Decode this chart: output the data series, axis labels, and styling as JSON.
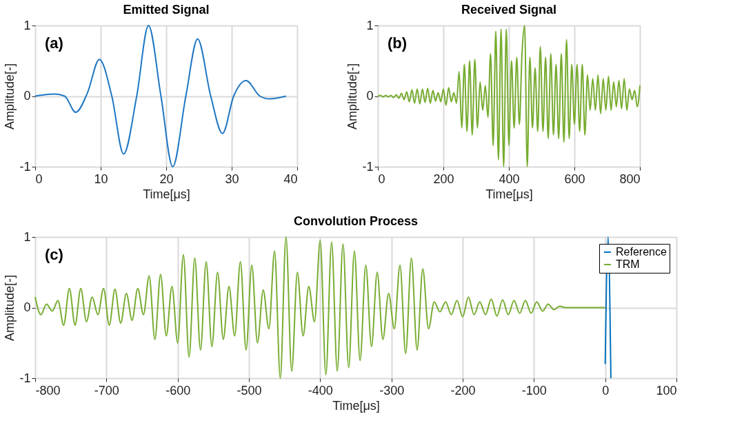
{
  "chart_data": [
    {
      "type": "line",
      "title": "Emitted Signal",
      "xlabel": "Time[μs]",
      "ylabel": "Amplitude[-]",
      "annotations": [
        "(a)"
      ],
      "xlim": [
        0,
        40
      ],
      "xticks": [
        0,
        10,
        20,
        30,
        40
      ],
      "ylim": [
        -1,
        1
      ],
      "yticks": [
        -1,
        0,
        1
      ],
      "grid": true,
      "legend": false,
      "series": [
        {
          "color": "#1f77c4",
          "x": [
            0,
            1.5,
            3,
            4.5,
            6.2,
            8,
            9.8,
            11.7,
            13.5,
            15.5,
            17.3,
            19.2,
            21,
            23,
            24.8,
            26.8,
            28.6,
            30.3,
            32.2,
            34.3,
            35.8,
            38.3
          ],
          "values": [
            0,
            0.02,
            0.03,
            0,
            -0.23,
            0.05,
            0.52,
            0,
            -0.82,
            0,
            1.0,
            0,
            -1.0,
            0,
            0.81,
            0,
            -0.53,
            0,
            0.22,
            0,
            -0.04,
            0
          ]
        }
      ]
    },
    {
      "type": "line",
      "title": "Received Signal",
      "xlabel": "Time[μs]",
      "ylabel": "Amplitude[-]",
      "annotations": [
        "(b)"
      ],
      "xlim": [
        0,
        800
      ],
      "xticks": [
        0,
        200,
        400,
        600,
        800
      ],
      "ylim": [
        -1,
        1
      ],
      "yticks": [
        -1,
        0,
        1
      ],
      "grid": true,
      "legend": false,
      "series": [
        {
          "color": "#77ac30",
          "x": [
            0,
            8,
            16,
            24,
            32,
            40,
            48,
            56,
            64,
            72,
            80,
            88,
            96,
            104,
            112,
            120,
            128,
            136,
            144,
            152,
            160,
            168,
            176,
            184,
            192,
            200,
            208,
            216,
            224,
            232,
            240,
            248,
            256,
            264,
            272,
            280,
            288,
            296,
            304,
            312,
            320,
            328,
            336,
            344,
            352,
            360,
            368,
            376,
            384,
            392,
            400,
            408,
            416,
            424,
            432,
            440,
            448,
            456,
            464,
            472,
            480,
            488,
            496,
            504,
            512,
            520,
            528,
            536,
            544,
            552,
            560,
            568,
            576,
            584,
            592,
            600,
            608,
            616,
            624,
            632,
            640,
            648,
            656,
            664,
            672,
            680,
            688,
            696,
            704,
            712,
            720,
            728,
            736,
            744,
            752,
            760,
            768,
            776,
            784,
            792,
            800
          ],
          "values": [
            0,
            0.01,
            -0.01,
            0.01,
            -0.01,
            0.01,
            -0.02,
            0.02,
            -0.03,
            0.04,
            -0.05,
            0.06,
            -0.08,
            0.09,
            -0.1,
            0.1,
            -0.11,
            0.1,
            -0.09,
            0.11,
            -0.1,
            0.08,
            -0.07,
            0.05,
            -0.08,
            0.1,
            -0.13,
            0.12,
            -0.08,
            0.05,
            -0.1,
            0.35,
            -0.45,
            0.45,
            -0.5,
            0.5,
            -0.55,
            0.52,
            -0.45,
            0.2,
            -0.2,
            0.15,
            -0.3,
            0.6,
            -0.7,
            0.92,
            -0.9,
            0.95,
            -1.0,
            0.95,
            -0.7,
            0.5,
            -0.45,
            0.55,
            -0.4,
            0.6,
            1.0,
            -1.0,
            0.55,
            -0.45,
            0.4,
            -0.5,
            0.7,
            -0.5,
            0.55,
            -0.6,
            0.6,
            -0.55,
            0.45,
            -0.6,
            0.6,
            -0.65,
            0.8,
            -0.6,
            0.45,
            -0.4,
            0.45,
            -0.5,
            0.45,
            -0.55,
            0.3,
            -0.2,
            0.25,
            -0.2,
            0.3,
            -0.25,
            0.25,
            -0.2,
            0.28,
            -0.2,
            0.2,
            -0.15,
            0.22,
            -0.18,
            0.25,
            -0.2,
            0.1,
            -0.05,
            0.08,
            -0.15,
            0.15
          ]
        }
      ]
    },
    {
      "type": "line",
      "title": "Convolution Process",
      "xlabel": "Time[μs]",
      "ylabel": "Amplitude[-]",
      "annotations": [
        "(c)"
      ],
      "xlim": [
        -800,
        100
      ],
      "xticks": [
        -800,
        -700,
        -600,
        -500,
        -400,
        -300,
        -200,
        -100,
        0,
        100
      ],
      "ylim": [
        -1,
        1
      ],
      "yticks": [
        -1,
        0,
        1
      ],
      "grid": true,
      "legend": "top right",
      "series": [
        {
          "name": "Reference",
          "color": "#0072bd",
          "x": [
            0,
            4,
            8
          ],
          "values": [
            -0.8,
            1.0,
            -1.0
          ]
        },
        {
          "name": "TRM",
          "color": "#77ac30",
          "x": [
            -800,
            -792,
            -784,
            -776,
            -768,
            -760,
            -752,
            -744,
            -736,
            -728,
            -720,
            -712,
            -704,
            -696,
            -688,
            -680,
            -672,
            -664,
            -656,
            -648,
            -640,
            -632,
            -624,
            -616,
            -608,
            -600,
            -592,
            -584,
            -576,
            -568,
            -560,
            -552,
            -544,
            -536,
            -528,
            -520,
            -512,
            -504,
            -496,
            -488,
            -480,
            -472,
            -464,
            -456,
            -448,
            -440,
            -432,
            -424,
            -416,
            -408,
            -400,
            -392,
            -384,
            -376,
            -368,
            -360,
            -352,
            -344,
            -336,
            -328,
            -320,
            -312,
            -304,
            -296,
            -288,
            -280,
            -272,
            -264,
            -256,
            -248,
            -240,
            -232,
            -224,
            -216,
            -208,
            -200,
            -192,
            -184,
            -176,
            -168,
            -160,
            -152,
            -144,
            -136,
            -128,
            -120,
            -112,
            -104,
            -96,
            -88,
            -80,
            -72,
            -64,
            -56,
            0
          ],
          "values": [
            0.15,
            -0.1,
            0.05,
            -0.05,
            0.1,
            -0.25,
            0.27,
            -0.25,
            0.27,
            -0.2,
            0.15,
            -0.1,
            0.27,
            -0.25,
            0.26,
            -0.22,
            0.2,
            -0.18,
            0.27,
            -0.1,
            0.45,
            -0.45,
            0.47,
            -0.4,
            0.3,
            -0.5,
            0.75,
            -0.7,
            0.7,
            -0.6,
            0.65,
            -0.55,
            0.5,
            -0.45,
            0.3,
            -0.4,
            0.65,
            -0.6,
            0.6,
            -0.5,
            0.25,
            -0.3,
            0.8,
            -1.0,
            1.0,
            -0.9,
            0.5,
            -0.4,
            0.3,
            -0.2,
            0.95,
            -0.95,
            0.93,
            -0.9,
            0.9,
            -0.85,
            0.8,
            -0.75,
            0.6,
            -0.55,
            0.5,
            -0.45,
            0.2,
            -0.3,
            0.6,
            -0.65,
            0.7,
            -0.6,
            0.55,
            -0.3,
            0.08,
            -0.06,
            0.08,
            -0.1,
            0.1,
            -0.13,
            0.15,
            -0.1,
            0.08,
            -0.1,
            0.12,
            -0.12,
            0.11,
            -0.1,
            0.1,
            -0.08,
            0.1,
            -0.08,
            0.08,
            -0.05,
            0.05,
            -0.03,
            0.02,
            0,
            0
          ]
        }
      ]
    }
  ]
}
